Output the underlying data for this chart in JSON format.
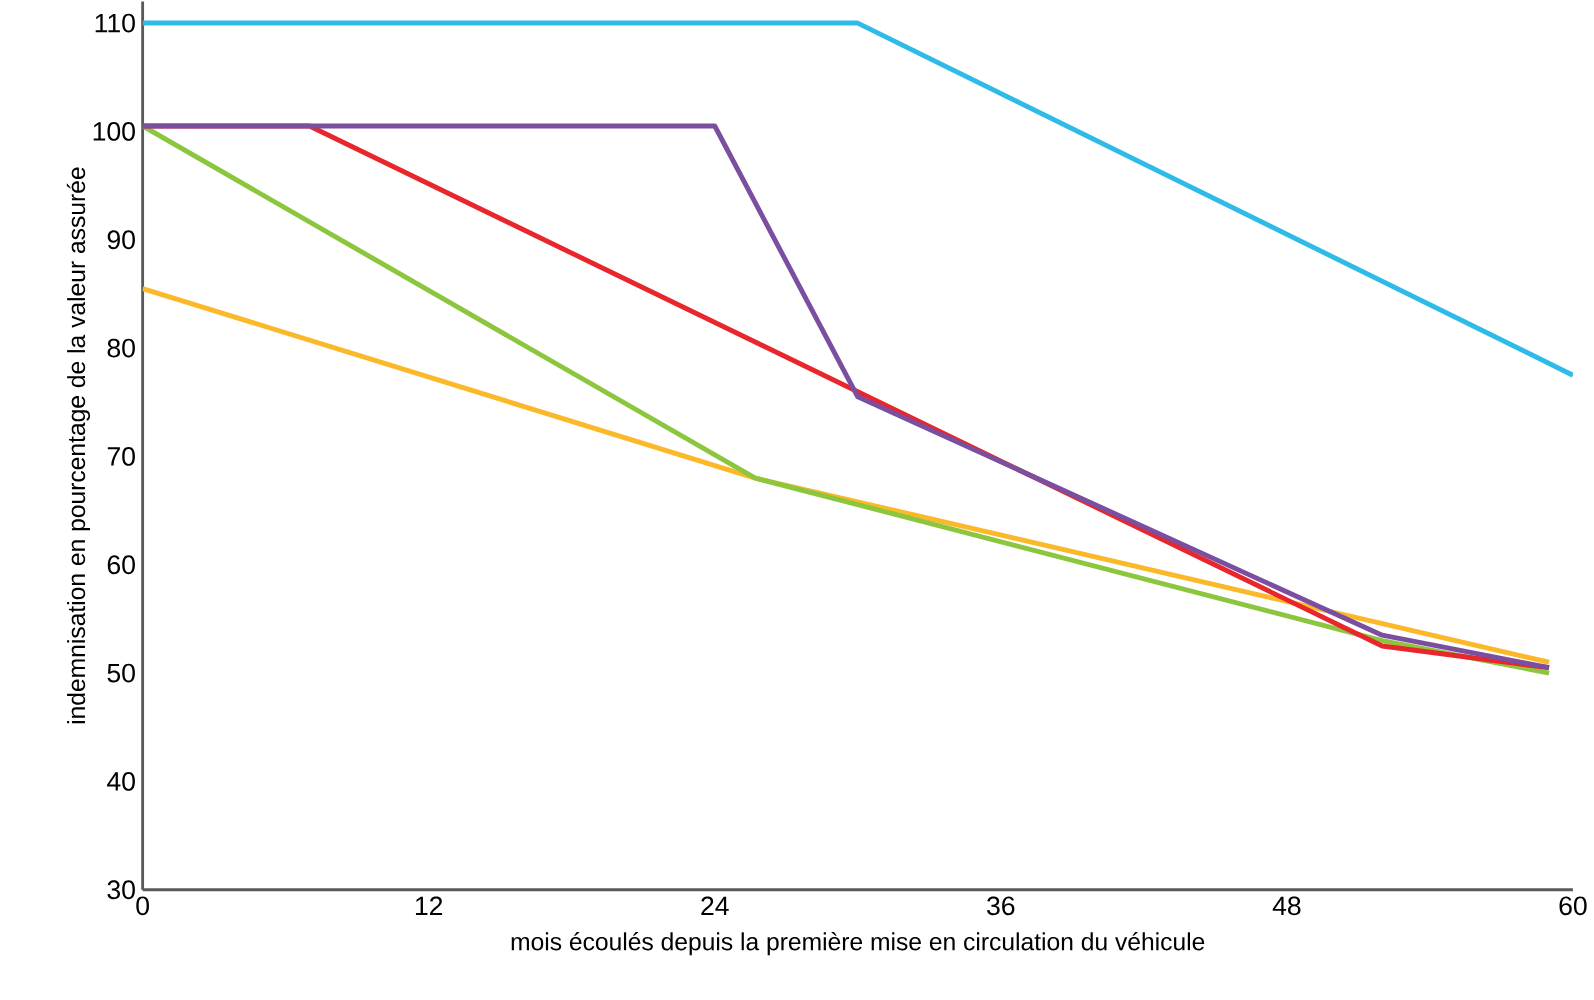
{
  "chart_data": {
    "type": "line",
    "xlabel": "mois écoulés depuis la première mise en circulation du véhicule",
    "ylabel": "indemnisation en pourcentage de la valeur assurée",
    "xlim": [
      0,
      60
    ],
    "ylim": [
      30,
      112
    ],
    "xticks": [
      0,
      12,
      24,
      36,
      48,
      60
    ],
    "yticks": [
      30,
      40,
      50,
      60,
      70,
      80,
      90,
      100,
      110
    ],
    "grid": false,
    "marker": "none",
    "line_style": "solid",
    "series": [
      {
        "color": "#2ebbe8",
        "x": [
          0,
          30,
          60
        ],
        "values": [
          110,
          110,
          77.5
        ]
      },
      {
        "color": "#fbb829",
        "x": [
          0,
          25.7,
          59
        ],
        "values": [
          85.5,
          68,
          51
        ]
      },
      {
        "color": "#8cc63f",
        "x": [
          0,
          25.7,
          52,
          59
        ],
        "values": [
          100.5,
          68,
          53,
          50
        ]
      },
      {
        "color": "#e8262c",
        "x": [
          0,
          7,
          52,
          59
        ],
        "values": [
          100.5,
          100.5,
          52.5,
          50.5
        ]
      },
      {
        "color": "#7b4fa0",
        "x": [
          0,
          24,
          30,
          52,
          59
        ],
        "values": [
          100.5,
          100.5,
          75.5,
          53.5,
          50.5
        ]
      }
    ]
  }
}
